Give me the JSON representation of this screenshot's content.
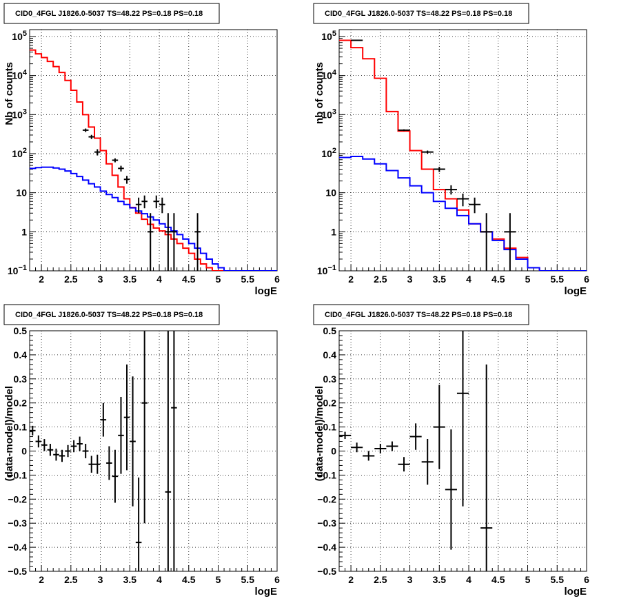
{
  "chart_data": [
    {
      "type": "step-histogram",
      "title": "CID0_4FGL J1826.0-5037 TS=48.22 PS=0.18 PS=0.18",
      "xlabel": "logE",
      "ylabel": "Nb of counts",
      "log_y": true,
      "grid": true,
      "xlim": [
        1.8,
        6.0
      ],
      "ylim": [
        0.1,
        150000
      ],
      "x_ticks": [
        "2",
        "2.5",
        "3",
        "3.5",
        "4",
        "4.5",
        "5",
        "5.5",
        "6"
      ],
      "y_tick_labels": [
        {
          "v": 0.1,
          "base": "10",
          "exp": "−1"
        },
        {
          "v": 1,
          "base": "1",
          "exp": ""
        },
        {
          "v": 10,
          "base": "10",
          "exp": ""
        },
        {
          "v": 100,
          "base": "10",
          "exp": "2"
        },
        {
          "v": 1000,
          "base": "10",
          "exp": "3"
        },
        {
          "v": 10000,
          "base": "10",
          "exp": "4"
        },
        {
          "v": 100000,
          "base": "10",
          "exp": "5"
        }
      ],
      "bin_edges": [
        1.8,
        1.9,
        2.0,
        2.1,
        2.2,
        2.3,
        2.4,
        2.5,
        2.6,
        2.7,
        2.8,
        2.9,
        3.0,
        3.1,
        3.2,
        3.3,
        3.4,
        3.5,
        3.6,
        3.7,
        3.8,
        3.9,
        4.0,
        4.1,
        4.2,
        4.3,
        4.4,
        4.5,
        4.6,
        4.7,
        4.8,
        4.9,
        5.0,
        5.1,
        5.2,
        5.3,
        5.4,
        5.5,
        5.6,
        5.7,
        5.8,
        5.9,
        6.0
      ],
      "series": [
        {
          "color": "#ff0000",
          "values": [
            45000,
            36000,
            29000,
            23000,
            17000,
            12000,
            7500,
            4200,
            2100,
            1000,
            480,
            250,
            120,
            55,
            28,
            14,
            7,
            4.2,
            3.0,
            2.1,
            1.55,
            1.25,
            1.05,
            0.85,
            0.65,
            0.5,
            0.38,
            0.28,
            0.2,
            0.15,
            0.12,
            0.1,
            0.1,
            0.1,
            0.1,
            0.1,
            0.1,
            0.1,
            0.1,
            0.1,
            0.1,
            0.1
          ]
        },
        {
          "color": "#0000ff",
          "values": [
            42,
            44,
            45,
            45,
            43,
            40,
            36,
            31,
            26,
            21,
            17,
            14,
            11,
            9,
            7.5,
            6,
            5,
            4.1,
            3.4,
            2.9,
            2.4,
            2.0,
            1.6,
            1.3,
            1.05,
            0.85,
            0.65,
            0.5,
            0.38,
            0.28,
            0.2,
            0.15,
            0.12,
            0.1,
            0.1,
            0.1,
            0.1,
            0.1,
            0.1,
            0.1,
            0.1,
            0.1
          ]
        }
      ],
      "points": [
        {
          "x": 2.75,
          "y": 400,
          "lo": 360,
          "hi": 440
        },
        {
          "x": 2.85,
          "y": 270,
          "lo": 237,
          "hi": 303
        },
        {
          "x": 2.95,
          "y": 110,
          "lo": 90,
          "hi": 130
        },
        {
          "x": 3.25,
          "y": 68,
          "lo": 60,
          "hi": 76
        },
        {
          "x": 3.35,
          "y": 42,
          "lo": 35,
          "hi": 49
        },
        {
          "x": 3.45,
          "y": 22,
          "lo": 17,
          "hi": 27
        },
        {
          "x": 3.65,
          "y": 5,
          "lo": 3,
          "hi": 7.5
        },
        {
          "x": 3.75,
          "y": 6,
          "lo": 4,
          "hi": 8.5
        },
        {
          "x": 3.85,
          "y": 1,
          "lo": 0.1,
          "hi": 3
        },
        {
          "x": 3.95,
          "y": 6,
          "lo": 4,
          "hi": 8.5
        },
        {
          "x": 4.05,
          "y": 5,
          "lo": 3,
          "hi": 7.5
        },
        {
          "x": 4.15,
          "y": 1,
          "lo": 0.1,
          "hi": 3
        },
        {
          "x": 4.25,
          "y": 1,
          "lo": 0.1,
          "hi": 3
        },
        {
          "x": 4.65,
          "y": 1,
          "lo": 0.1,
          "hi": 3
        }
      ]
    },
    {
      "type": "step-histogram",
      "title": "CID0_4FGL J1826.0-5037 TS=48.22 PS=0.18 PS=0.18",
      "xlabel": "logE",
      "ylabel": "nb of counts",
      "log_y": true,
      "grid": true,
      "xlim": [
        1.8,
        6.0
      ],
      "ylim": [
        0.1,
        150000
      ],
      "x_ticks": [
        "2",
        "2.5",
        "3",
        "3.5",
        "4",
        "4.5",
        "5",
        "5.5",
        "6"
      ],
      "y_tick_labels": [
        {
          "v": 0.1,
          "base": "10",
          "exp": "−1"
        },
        {
          "v": 1,
          "base": "1",
          "exp": ""
        },
        {
          "v": 10,
          "base": "10",
          "exp": ""
        },
        {
          "v": 100,
          "base": "10",
          "exp": "2"
        },
        {
          "v": 1000,
          "base": "10",
          "exp": "3"
        },
        {
          "v": 10000,
          "base": "10",
          "exp": "4"
        },
        {
          "v": 100000,
          "base": "10",
          "exp": "5"
        }
      ],
      "bin_edges": [
        1.8,
        2.0,
        2.2,
        2.4,
        2.6,
        2.8,
        3.0,
        3.2,
        3.4,
        3.6,
        3.8,
        4.0,
        4.2,
        4.4,
        4.6,
        4.8,
        5.0,
        5.2,
        5.4,
        5.6,
        5.8,
        6.0
      ],
      "series": [
        {
          "color": "#ff0000",
          "values": [
            80000,
            52000,
            27000,
            8500,
            1200,
            380,
            120,
            40,
            12,
            7,
            3.6,
            1.6,
            1.0,
            0.65,
            0.38,
            0.22,
            0.12,
            0.1,
            0.1,
            0.1,
            0.1
          ]
        },
        {
          "color": "#0000ff",
          "values": [
            80,
            85,
            73,
            55,
            37,
            24,
            15,
            10,
            6,
            4,
            2.6,
            1.6,
            1.0,
            0.6,
            0.35,
            0.2,
            0.12,
            0.1,
            0.1,
            0.1,
            0.1
          ]
        }
      ],
      "points": [
        {
          "x": 2.1,
          "y": 80000,
          "lo": 79700,
          "hi": 80300
        },
        {
          "x": 2.9,
          "y": 400,
          "lo": 380,
          "hi": 420
        },
        {
          "x": 3.3,
          "y": 110,
          "lo": 100,
          "hi": 120
        },
        {
          "x": 3.5,
          "y": 40,
          "lo": 34,
          "hi": 46
        },
        {
          "x": 3.7,
          "y": 12,
          "lo": 9,
          "hi": 15.5
        },
        {
          "x": 3.9,
          "y": 7,
          "lo": 4.5,
          "hi": 9.5
        },
        {
          "x": 4.1,
          "y": 5,
          "lo": 3,
          "hi": 7.5
        },
        {
          "x": 4.3,
          "y": 1,
          "lo": 0.1,
          "hi": 3
        },
        {
          "x": 4.7,
          "y": 1,
          "lo": 0.1,
          "hi": 3
        }
      ]
    },
    {
      "type": "scatter-errorbar",
      "title": "CID0_4FGL J1826.0-5037 TS=48.22 PS=0.18 PS=0.18",
      "xlabel": "logE",
      "ylabel": "(data-model)/model",
      "log_y": false,
      "grid": true,
      "xlim": [
        1.8,
        6.0
      ],
      "ylim": [
        -0.5,
        0.5
      ],
      "x_ticks": [
        "2",
        "2.5",
        "3",
        "3.5",
        "4",
        "4.5",
        "5",
        "5.5",
        "6"
      ],
      "y_ticks": [
        "-0.5",
        "-0.4",
        "-0.3",
        "-0.2",
        "-0.1",
        "0",
        "0.1",
        "0.2",
        "0.3",
        "0.4",
        "0.5"
      ],
      "points": [
        {
          "x": 1.85,
          "y": 0.085,
          "err": 0.02
        },
        {
          "x": 1.95,
          "y": 0.04,
          "err": 0.025
        },
        {
          "x": 2.05,
          "y": 0.025,
          "err": 0.025
        },
        {
          "x": 2.15,
          "y": 0.005,
          "err": 0.025
        },
        {
          "x": 2.25,
          "y": -0.015,
          "err": 0.025
        },
        {
          "x": 2.35,
          "y": -0.02,
          "err": 0.025
        },
        {
          "x": 2.45,
          "y": 0.0,
          "err": 0.025
        },
        {
          "x": 2.55,
          "y": 0.02,
          "err": 0.025
        },
        {
          "x": 2.65,
          "y": 0.03,
          "err": 0.03
        },
        {
          "x": 2.75,
          "y": 0.0,
          "err": 0.03
        },
        {
          "x": 2.85,
          "y": -0.055,
          "err": 0.035
        },
        {
          "x": 2.95,
          "y": -0.055,
          "err": 0.04
        },
        {
          "x": 3.05,
          "y": 0.13,
          "err": 0.07
        },
        {
          "x": 3.15,
          "y": -0.05,
          "err": 0.07
        },
        {
          "x": 3.25,
          "y": -0.105,
          "err": 0.11
        },
        {
          "x": 3.35,
          "y": 0.065,
          "err": 0.16
        },
        {
          "x": 3.45,
          "y": 0.14,
          "err": 0.22
        },
        {
          "x": 3.55,
          "y": 0.04,
          "err": 0.27
        },
        {
          "x": 3.65,
          "y": -0.38,
          "err": 0.27
        },
        {
          "x": 3.75,
          "y": 0.2,
          "err": 0.5
        },
        {
          "x": 4.15,
          "y": -0.17,
          "err": 0.8
        },
        {
          "x": 4.25,
          "y": 0.18,
          "err": 0.8
        }
      ]
    },
    {
      "type": "scatter-errorbar",
      "title": "CID0_4FGL J1826.0-5037 TS=48.22 PS=0.18 PS=0.18",
      "xlabel": "logE",
      "ylabel": "(data-model)/model",
      "log_y": false,
      "grid": true,
      "xlim": [
        1.8,
        6.0
      ],
      "ylim": [
        -0.5,
        0.5
      ],
      "x_ticks": [
        "2",
        "2.5",
        "3",
        "3.5",
        "4",
        "4.5",
        "5",
        "5.5",
        "6"
      ],
      "y_ticks": [
        "-0.5",
        "-0.4",
        "-0.3",
        "-0.2",
        "-0.1",
        "0",
        "0.1",
        "0.2",
        "0.3",
        "0.4",
        "0.5"
      ],
      "points": [
        {
          "x": 1.9,
          "y": 0.065,
          "err": 0.015
        },
        {
          "x": 2.1,
          "y": 0.015,
          "err": 0.02
        },
        {
          "x": 2.3,
          "y": -0.02,
          "err": 0.02
        },
        {
          "x": 2.5,
          "y": 0.01,
          "err": 0.02
        },
        {
          "x": 2.7,
          "y": 0.02,
          "err": 0.02
        },
        {
          "x": 2.9,
          "y": -0.055,
          "err": 0.03
        },
        {
          "x": 3.1,
          "y": 0.06,
          "err": 0.055
        },
        {
          "x": 3.3,
          "y": -0.045,
          "err": 0.095
        },
        {
          "x": 3.5,
          "y": 0.1,
          "err": 0.175
        },
        {
          "x": 3.7,
          "y": -0.16,
          "err": 0.25
        },
        {
          "x": 3.9,
          "y": 0.24,
          "err": 0.47
        },
        {
          "x": 4.3,
          "y": -0.32,
          "err": 0.68
        }
      ]
    }
  ]
}
